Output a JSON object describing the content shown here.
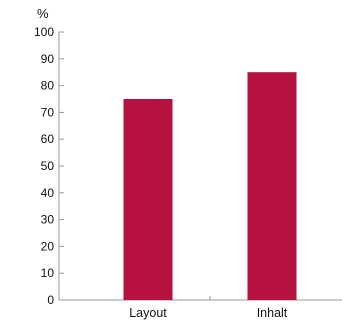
{
  "chart_data": {
    "type": "bar",
    "categories": [
      "Layout",
      "Inhalt"
    ],
    "values": [
      75,
      85
    ],
    "unit_label": "%",
    "ylim": [
      0,
      100
    ],
    "yticks": [
      0,
      10,
      20,
      30,
      40,
      50,
      60,
      70,
      80,
      90,
      100
    ],
    "grid": false,
    "bar_color": "#b5123f",
    "axis_color": "#9a9a9a"
  }
}
